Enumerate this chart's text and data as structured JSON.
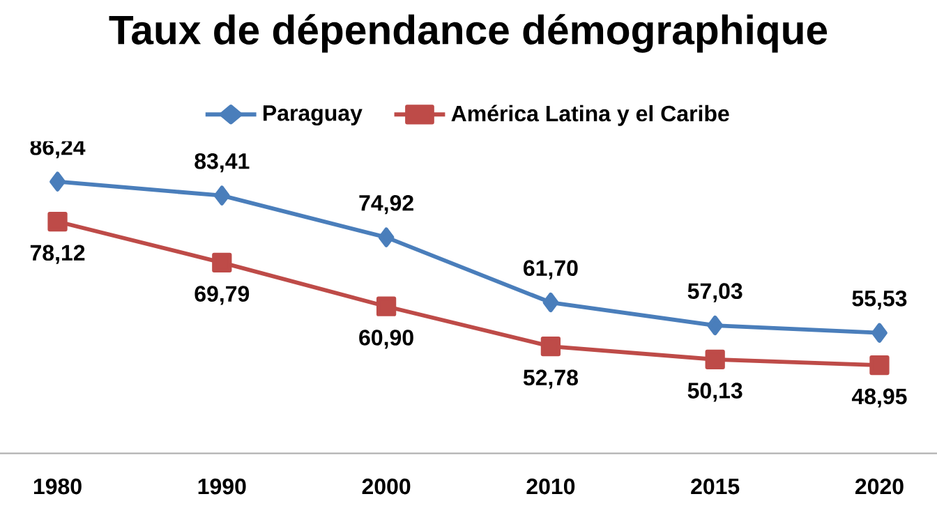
{
  "chart_data": {
    "type": "line",
    "title": "Taux de dépendance démographique",
    "categories": [
      "1980",
      "1990",
      "2000",
      "2010",
      "2015",
      "2020"
    ],
    "series": [
      {
        "name": "Paraguay",
        "color": "#4a7ebb",
        "marker": "diamond",
        "values": [
          86.24,
          83.41,
          74.92,
          61.7,
          57.03,
          55.53
        ],
        "value_labels": [
          "86,24",
          "83,41",
          "74,92",
          "61,70",
          "57,03",
          "55,53"
        ]
      },
      {
        "name": "América Latina y el Caribe",
        "color": "#be4b48",
        "marker": "square",
        "values": [
          78.12,
          69.79,
          60.9,
          52.78,
          50.13,
          48.95
        ],
        "value_labels": [
          "78,12",
          "69,79",
          "60,90",
          "52,78",
          "50,13",
          "48,95"
        ]
      }
    ],
    "legend": "top",
    "grid": false,
    "line_style": "solid"
  }
}
